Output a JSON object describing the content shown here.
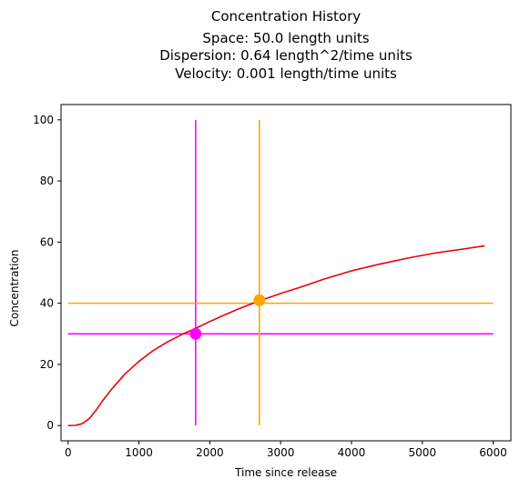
{
  "chart_data": {
    "type": "line",
    "title_lines": [
      "Concentration History",
      "Space: 50.0 length units",
      "Dispersion: 0.64 length^2/time units",
      "Velocity: 0.001 length/time units"
    ],
    "xlabel": "Time since release",
    "ylabel": "Concentration",
    "xlim": [
      -100,
      6250
    ],
    "ylim": [
      -5,
      105
    ],
    "xticks": [
      0,
      1000,
      2000,
      3000,
      4000,
      5000,
      6000
    ],
    "yticks": [
      0,
      20,
      40,
      60,
      80,
      100
    ],
    "grid": false,
    "curve": {
      "color": "#e8000b",
      "x": [
        0,
        100,
        200,
        300,
        400,
        500,
        600,
        800,
        1000,
        1200,
        1400,
        1600,
        1800,
        2000,
        2200,
        2400,
        2600,
        2800,
        3000,
        3300,
        3600,
        4000,
        4400,
        4800,
        5200,
        5600,
        5880
      ],
      "y": [
        0,
        0.05,
        0.6,
        2.3,
        5.2,
        8.5,
        11.5,
        16.8,
        21.0,
        24.5,
        27.3,
        29.7,
        31.8,
        34.0,
        36.1,
        38.1,
        39.9,
        41.6,
        43.2,
        45.4,
        47.8,
        50.6,
        52.8,
        54.8,
        56.5,
        57.8,
        58.8
      ]
    },
    "markers": [
      {
        "color": "#ff00ff",
        "x": 1800,
        "y": 30,
        "hline": {
          "y": 30,
          "x_from": 0,
          "x_to": 6000
        },
        "vline": {
          "x": 1800,
          "y_from": 0,
          "y_to": 100
        }
      },
      {
        "color": "#ffa500",
        "x": 2700,
        "y": 41,
        "hline": {
          "y": 40,
          "x_from": 0,
          "x_to": 6000
        },
        "vline": {
          "x": 2700,
          "y_from": 0,
          "y_to": 100
        }
      }
    ]
  }
}
